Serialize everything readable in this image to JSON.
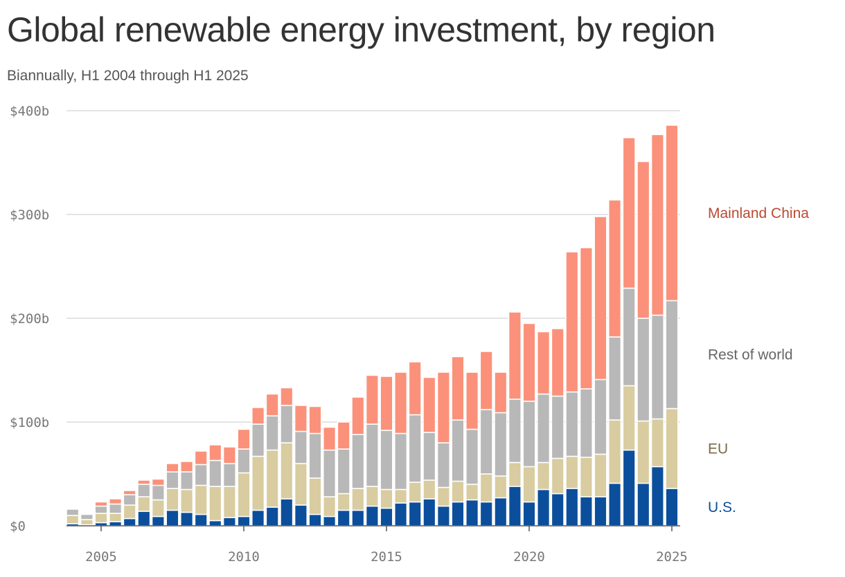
{
  "chart_data": {
    "type": "bar",
    "stacked": true,
    "title": "Global renewable energy investment, by region",
    "subtitle": "Biannually, H1 2004 through H1 2025",
    "ylim": [
      0,
      400
    ],
    "y_ticks": [
      {
        "value": 0,
        "label": "$0"
      },
      {
        "value": 100,
        "label": "$100b"
      },
      {
        "value": 200,
        "label": "$200b"
      },
      {
        "value": 300,
        "label": "$300b"
      },
      {
        "value": 400,
        "label": "$400b"
      }
    ],
    "x_ticks": [
      "2005",
      "2010",
      "2015",
      "2020",
      "2025"
    ],
    "categories": [
      "H1 2004",
      "H2 2004",
      "H1 2005",
      "H2 2005",
      "H1 2006",
      "H2 2006",
      "H1 2007",
      "H2 2007",
      "H1 2008",
      "H2 2008",
      "H1 2009",
      "H2 2009",
      "H1 2010",
      "H2 2010",
      "H1 2011",
      "H2 2011",
      "H1 2012",
      "H2 2012",
      "H1 2013",
      "H2 2013",
      "H1 2014",
      "H2 2014",
      "H1 2015",
      "H2 2015",
      "H1 2016",
      "H2 2016",
      "H1 2017",
      "H2 2017",
      "H1 2018",
      "H2 2018",
      "H1 2019",
      "H2 2019",
      "H1 2020",
      "H2 2020",
      "H1 2021",
      "H2 2021",
      "H1 2022",
      "H2 2022",
      "H1 2023",
      "H2 2023",
      "H1 2024",
      "H2 2024",
      "H1 2025"
    ],
    "series": [
      {
        "name": "U.S.",
        "color": "#0b4f9c",
        "label_color": "#0b4f9c",
        "values": [
          2,
          1,
          3,
          4,
          7,
          14,
          9,
          15,
          13,
          11,
          5,
          8,
          9,
          15,
          18,
          26,
          20,
          11,
          9,
          15,
          15,
          19,
          17,
          22,
          23,
          26,
          19,
          23,
          25,
          23,
          27,
          38,
          23,
          35,
          31,
          36,
          28,
          28,
          41,
          73,
          41,
          57,
          36
        ]
      },
      {
        "name": "EU",
        "color": "#d8cca0",
        "label_color": "#7a6b4a",
        "values": [
          8,
          5,
          9,
          8,
          13,
          14,
          16,
          21,
          22,
          28,
          33,
          30,
          42,
          52,
          55,
          54,
          40,
          35,
          19,
          16,
          21,
          19,
          18,
          13,
          19,
          18,
          18,
          20,
          15,
          27,
          21,
          23,
          34,
          26,
          34,
          31,
          38,
          41,
          61,
          62,
          60,
          46,
          77
        ]
      },
      {
        "name": "Rest of world",
        "color": "#b8b8b8",
        "label_color": "#666666",
        "values": [
          6,
          5,
          7,
          9,
          10,
          12,
          14,
          16,
          17,
          20,
          25,
          22,
          23,
          31,
          33,
          36,
          31,
          43,
          45,
          43,
          52,
          60,
          57,
          54,
          65,
          46,
          43,
          59,
          53,
          62,
          61,
          61,
          63,
          66,
          60,
          62,
          66,
          72,
          80,
          94,
          99,
          100,
          104
        ]
      },
      {
        "name": "Mainland China",
        "color": "#fb917a",
        "label_color": "#b94a33",
        "values": [
          0,
          0,
          4,
          5,
          4,
          4,
          6,
          8,
          10,
          13,
          15,
          16,
          19,
          16,
          21,
          17,
          25,
          26,
          22,
          26,
          36,
          47,
          52,
          59,
          51,
          53,
          68,
          61,
          55,
          56,
          39,
          84,
          75,
          60,
          65,
          135,
          136,
          157,
          132,
          145,
          151,
          174,
          169
        ]
      }
    ]
  }
}
